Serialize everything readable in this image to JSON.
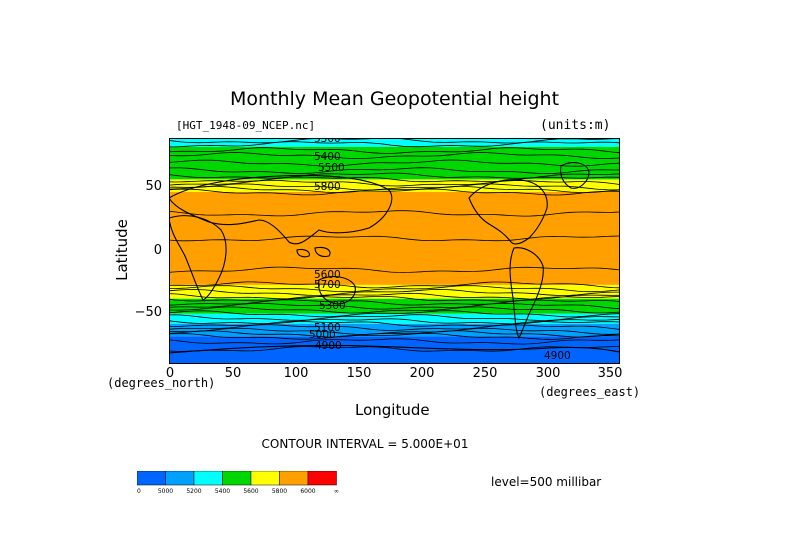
{
  "chart_data": {
    "type": "heatmap",
    "title": "Monthly Mean Geopotential height",
    "subtitle": "[HGT_1948-09_NCEP.nc]",
    "units": "(units:m)",
    "xlabel": "Longitude",
    "ylabel": "Latitude",
    "x_units": "(degrees_east)",
    "y_units": "(degrees_north)",
    "xlim": [
      0,
      357.5
    ],
    "ylim": [
      -90,
      90
    ],
    "x_ticks": [
      "0",
      "50",
      "100",
      "150",
      "200",
      "250",
      "300",
      "350"
    ],
    "y_ticks": [
      "50",
      "0",
      "−50"
    ],
    "contour_interval": "CONTOUR INTERVAL = 5.000E+01",
    "level": "level=500 millibar",
    "contour_labels": [
      "5300",
      "5400",
      "5500",
      "5800",
      "5600",
      "5700",
      "5300",
      "5100",
      "5000",
      "4900",
      "4900"
    ],
    "colorbar": {
      "labels": [
        "0",
        "5000",
        "5200",
        "5400",
        "5600",
        "5800",
        "6000",
        "∞"
      ],
      "colors": [
        "#0064ff",
        "#00a0ff",
        "#00ffff",
        "#00d700",
        "#ffff00",
        "#ffa000",
        "#ff0000"
      ]
    },
    "zonal_bands": [
      {
        "lat_from": 90,
        "lat_to": 83,
        "value_range": "5200-5400",
        "color": "#00ffff"
      },
      {
        "lat_from": 83,
        "lat_to": 57,
        "value_range": "5400-5600",
        "color": "#00d700"
      },
      {
        "lat_from": 57,
        "lat_to": 47,
        "value_range": "5600-5800",
        "color": "#ffff00"
      },
      {
        "lat_from": 47,
        "lat_to": -27,
        "value_range": "5800-6000",
        "color": "#ffa000"
      },
      {
        "lat_from": -27,
        "lat_to": -38,
        "value_range": "5600-5800",
        "color": "#ffff00"
      },
      {
        "lat_from": -38,
        "lat_to": -50,
        "value_range": "5400-5600",
        "color": "#00d700"
      },
      {
        "lat_from": -50,
        "lat_to": -58,
        "value_range": "5200-5400",
        "color": "#00ffff"
      },
      {
        "lat_from": -58,
        "lat_to": -68,
        "value_range": "5000-5200",
        "color": "#00a0ff"
      },
      {
        "lat_from": -68,
        "lat_to": -90,
        "value_range": "<5000",
        "color": "#0064ff"
      }
    ]
  }
}
